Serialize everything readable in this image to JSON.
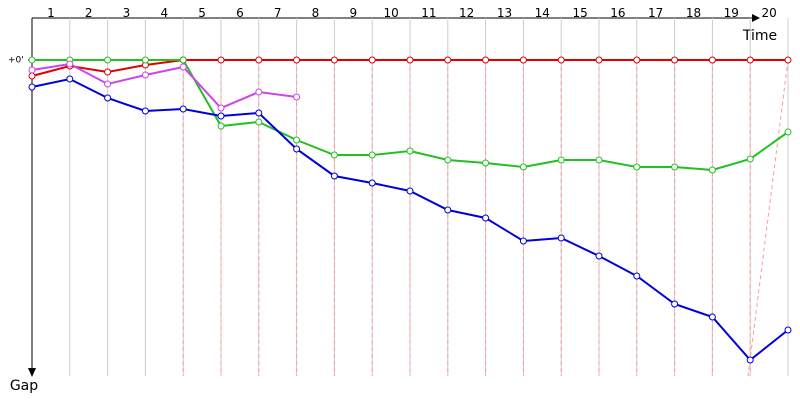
{
  "chart_data": {
    "type": "line",
    "x_label": "Time",
    "y_label": "Gap",
    "x": [
      0,
      1,
      2,
      3,
      4,
      5,
      6,
      7,
      8,
      9,
      10,
      11,
      12,
      13,
      14,
      15,
      16,
      17,
      18,
      19,
      20
    ],
    "xlim": [
      0,
      20
    ],
    "laps": [
      1,
      2,
      3,
      4,
      5,
      6,
      7,
      8,
      9,
      10,
      11,
      12,
      13,
      14,
      15,
      16,
      17,
      18,
      19,
      20
    ],
    "ylim": [
      0,
      316
    ],
    "yticks": [
      {
        "value": 0,
        "label": "+0'"
      }
    ],
    "series": [
      {
        "color": "#e00000",
        "values": [
          16,
          6,
          12,
          5,
          0,
          0,
          0,
          0,
          0,
          0,
          0,
          0,
          0,
          0,
          0,
          0,
          0,
          0,
          0,
          0,
          0
        ]
      },
      {
        "color": "#22c022",
        "values": [
          0,
          0,
          0,
          0,
          0,
          66,
          62,
          80,
          95,
          95,
          91,
          100,
          103,
          107,
          100,
          100,
          107,
          107,
          110,
          99,
          72
        ]
      },
      {
        "color": "#cc44ee",
        "values": [
          10,
          4,
          24,
          15,
          7,
          48,
          32,
          37,
          null,
          null,
          null,
          null,
          null,
          null,
          null,
          null,
          null,
          null,
          null,
          null,
          null
        ]
      },
      {
        "color": "#0000dd",
        "values": [
          27,
          19,
          38,
          51,
          49,
          56,
          53,
          89,
          116,
          123,
          131,
          150,
          158,
          181,
          178,
          196,
          216,
          244,
          257,
          300,
          270
        ]
      }
    ]
  }
}
